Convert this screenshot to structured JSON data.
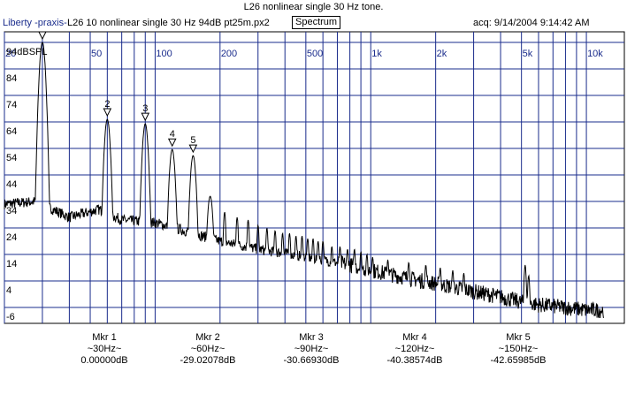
{
  "header": {
    "title": "L26 nonlinear single 30 Hz tone.",
    "app_name": "Liberty -praxis-",
    "file_name": "L26 10 nonlinear single 30 Hz 94dB pt25m.px2",
    "mode": "Spectrum",
    "acq": "acq: 9/14/2004 9:14:42 AM"
  },
  "markers": [
    {
      "label": "Mkr 1",
      "freq": "~30Hz~",
      "value": "0.00000dB"
    },
    {
      "label": "Mkr 2",
      "freq": "~60Hz~",
      "value": "-29.02078dB"
    },
    {
      "label": "Mkr 3",
      "freq": "~90Hz~",
      "value": "-30.66930dB"
    },
    {
      "label": "Mkr 4",
      "freq": "~120Hz~",
      "value": "-40.38574dB"
    },
    {
      "label": "Mkr 5",
      "freq": "~150Hz~",
      "value": "-42.65985dB"
    }
  ],
  "chart_data": {
    "type": "line",
    "x_scale": "log",
    "xlim": [
      20,
      15000
    ],
    "ylim": [
      -12,
      98
    ],
    "x_ticks": [
      {
        "v": 20,
        "label": "20"
      },
      {
        "v": 50,
        "label": "50"
      },
      {
        "v": 100,
        "label": "100"
      },
      {
        "v": 200,
        "label": "200"
      },
      {
        "v": 500,
        "label": "500"
      },
      {
        "v": 1000,
        "label": "1k"
      },
      {
        "v": 2000,
        "label": "2k"
      },
      {
        "v": 5000,
        "label": "5k"
      },
      {
        "v": 10000,
        "label": "10k"
      }
    ],
    "x_minor_ticks": [
      30,
      40,
      60,
      70,
      80,
      90,
      300,
      400,
      600,
      700,
      800,
      900,
      3000,
      4000,
      6000,
      7000,
      8000,
      9000
    ],
    "y_ticks": [
      {
        "v": 94,
        "label": "94dBSPL"
      },
      {
        "v": 84,
        "label": "84"
      },
      {
        "v": 74,
        "label": "74"
      },
      {
        "v": 64,
        "label": "64"
      },
      {
        "v": 54,
        "label": "54"
      },
      {
        "v": 44,
        "label": "44"
      },
      {
        "v": 34,
        "label": "34"
      },
      {
        "v": 24,
        "label": "24"
      },
      {
        "v": 14,
        "label": "14"
      },
      {
        "v": 4,
        "label": "4"
      },
      {
        "v": -6,
        "label": "-6"
      }
    ],
    "grid": true,
    "colors": {
      "grid": "#1a2c8c",
      "trace": "#000000"
    },
    "markers": [
      {
        "label": "",
        "x": 30,
        "y": 94
      },
      {
        "label": "2",
        "x": 60,
        "y": 65
      },
      {
        "label": "3",
        "x": 90,
        "y": 63.3
      },
      {
        "label": "4",
        "x": 120,
        "y": 53.6
      },
      {
        "label": "5",
        "x": 150,
        "y": 51.3
      }
    ],
    "series": [
      {
        "noise_floor": [
          [
            20,
            33
          ],
          [
            28,
            34
          ],
          [
            40,
            28
          ],
          [
            55,
            31
          ],
          [
            70,
            27
          ],
          [
            100,
            26
          ],
          [
            150,
            22
          ],
          [
            200,
            19
          ],
          [
            300,
            16
          ],
          [
            500,
            13
          ],
          [
            800,
            10
          ],
          [
            1000,
            8
          ],
          [
            1500,
            5
          ],
          [
            2000,
            3
          ],
          [
            3000,
            0
          ],
          [
            4000,
            -2
          ],
          [
            5000,
            -4
          ],
          [
            6000,
            -5
          ],
          [
            8000,
            -6
          ],
          [
            10000,
            -7
          ],
          [
            12000,
            -7
          ]
        ],
        "peaks": [
          [
            30,
            94
          ],
          [
            60,
            65
          ],
          [
            90,
            63.3
          ],
          [
            120,
            53.6
          ],
          [
            150,
            51.3
          ],
          [
            180,
            36
          ],
          [
            210,
            30
          ],
          [
            240,
            28
          ],
          [
            270,
            27
          ],
          [
            300,
            25
          ],
          [
            330,
            24
          ],
          [
            360,
            23
          ],
          [
            390,
            22
          ],
          [
            420,
            22
          ],
          [
            450,
            21
          ],
          [
            480,
            21
          ],
          [
            510,
            20
          ],
          [
            540,
            20
          ],
          [
            570,
            19
          ],
          [
            600,
            19
          ],
          [
            660,
            17
          ],
          [
            720,
            17
          ],
          [
            780,
            16
          ],
          [
            840,
            16
          ],
          [
            900,
            15
          ],
          [
            960,
            14
          ],
          [
            1020,
            13
          ],
          [
            1200,
            12
          ],
          [
            1500,
            11
          ],
          [
            1800,
            10
          ],
          [
            2100,
            9
          ],
          [
            2400,
            8
          ],
          [
            2700,
            7
          ],
          [
            5200,
            10
          ],
          [
            5400,
            6
          ]
        ]
      }
    ]
  }
}
